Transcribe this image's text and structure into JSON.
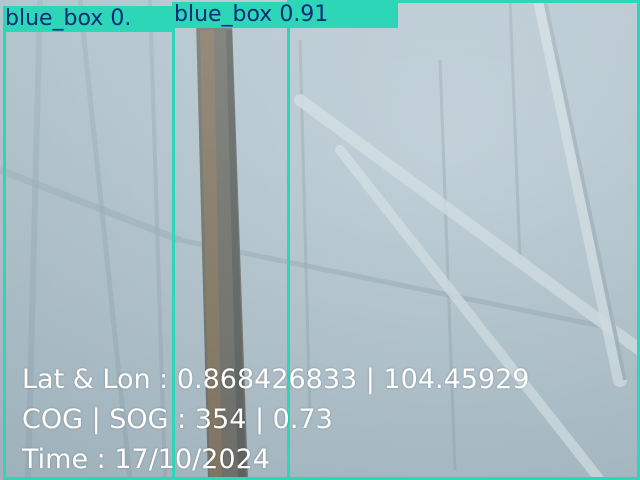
{
  "detections": [
    {
      "label": "blue_box 0.",
      "color": "#2ed6b8"
    },
    {
      "label": "blue_box 0.91",
      "color": "#2ed6b8"
    }
  ],
  "telemetry": {
    "latlon": "Lat & Lon : 0.868426833 | 104.45929",
    "cogsog": "COG | SOG : 354 | 0.73",
    "time": "Time : 17/10/2024"
  }
}
